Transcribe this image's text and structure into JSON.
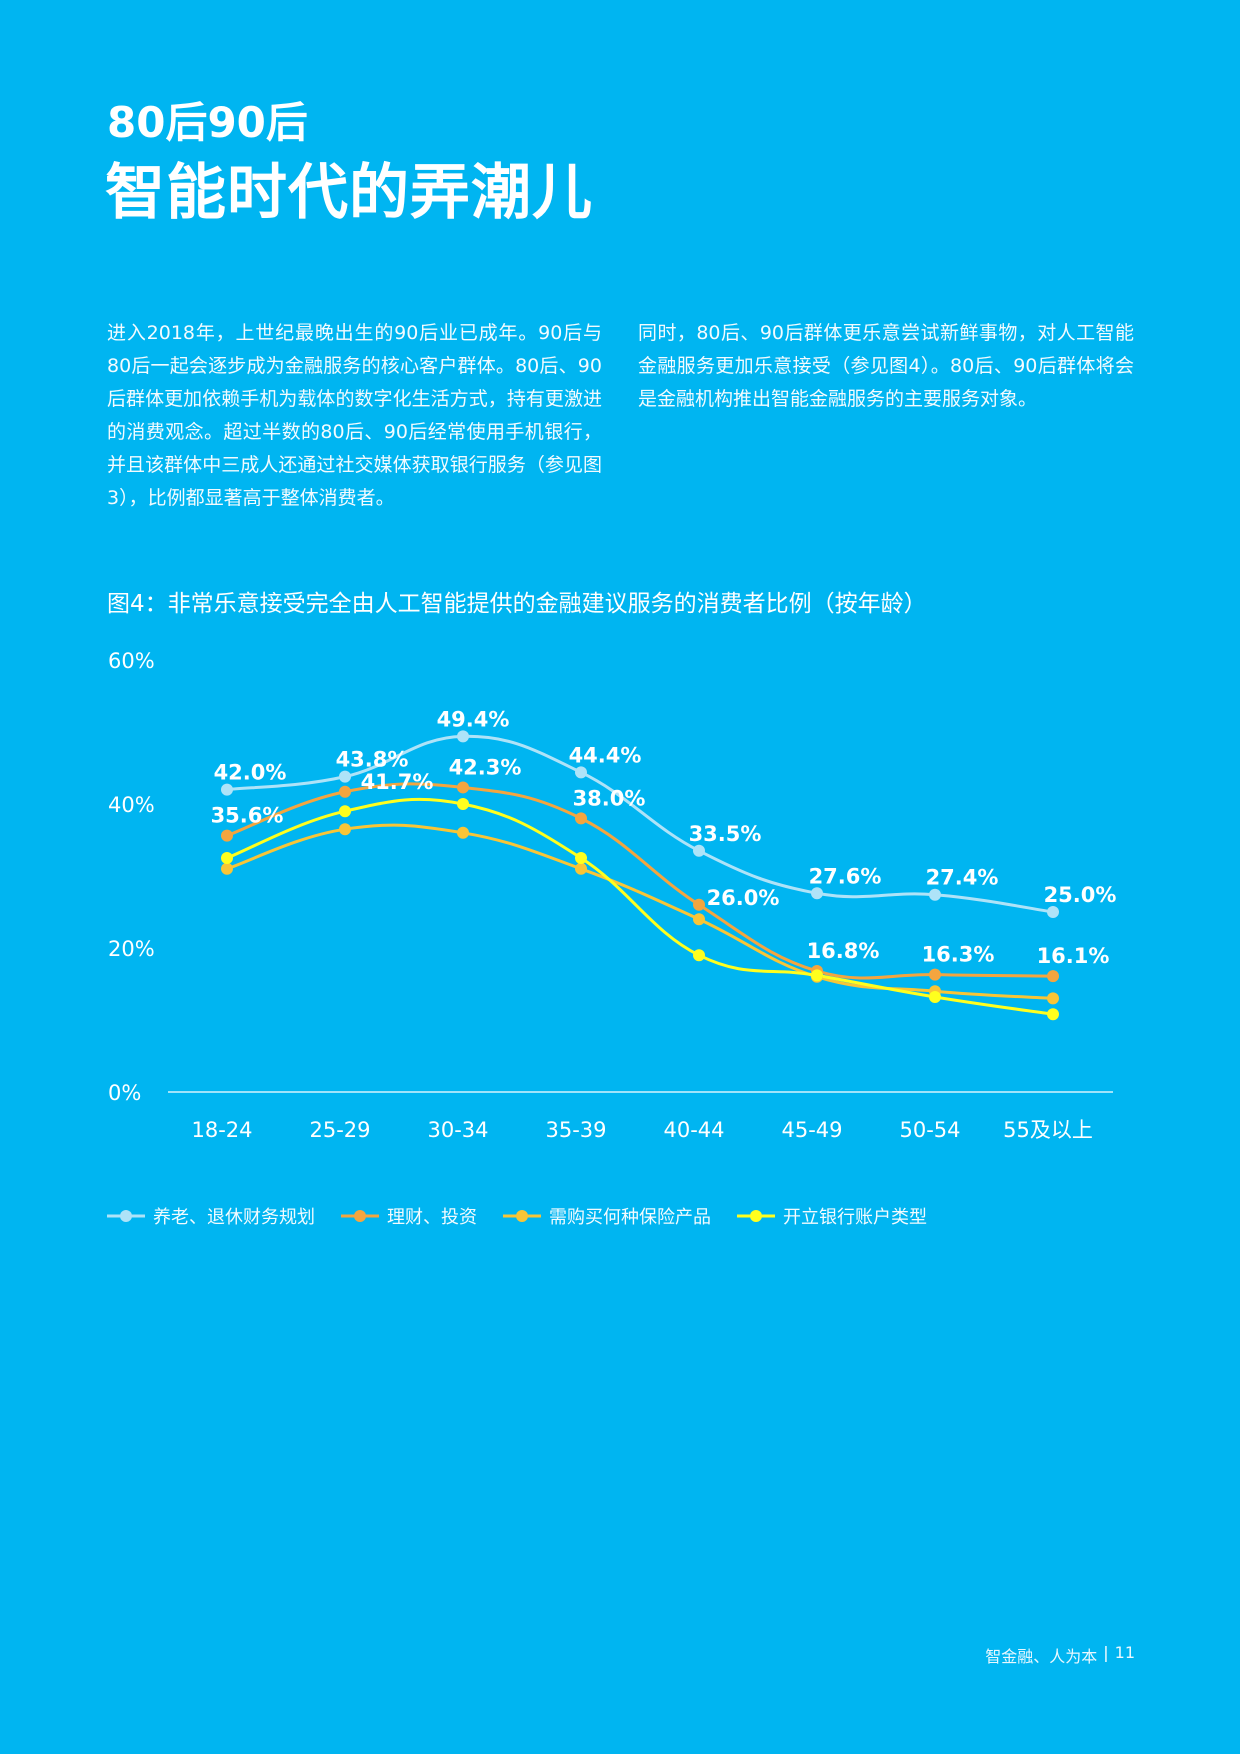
{
  "header": {
    "kicker": "80后90后",
    "title": "智能时代的弄潮儿"
  },
  "body": {
    "left_paragraph": "进入2018年，上世纪最晚出生的90后业已成年。90后与80后一起会逐步成为金融服务的核心客户群体。80后、90后群体更加依赖手机为载体的数字化生活方式，持有更激进的消费观念。超过半数的80后、90后经常使用手机银行，并且该群体中三成人还通过社交媒体获取银行服务（参见图3），比例都显著高于整体消费者。",
    "right_paragraph": "同时，80后、90后群体更乐意尝试新鲜事物，对人工智能金融服务更加乐意接受（参见图4）。80后、90后群体将会是金融机构推出智能金融服务的主要服务对象。"
  },
  "figure": {
    "title": "图4：非常乐意接受完全由人工智能提供的金融建议服务的消费者比例（按年龄）"
  },
  "chart_data": {
    "type": "line",
    "title": "图4：非常乐意接受完全由人工智能提供的金融建议服务的消费者比例（按年龄）",
    "categories": [
      "18-24",
      "25-29",
      "30-34",
      "35-39",
      "40-44",
      "45-49",
      "50-54",
      "55及以上"
    ],
    "ylim": [
      0,
      60
    ],
    "yticks": [
      0,
      20,
      40,
      60
    ],
    "ytick_labels": [
      "0%",
      "20%",
      "40%",
      "60%"
    ],
    "grid": false,
    "legend_position": "bottom-left",
    "series": [
      {
        "name": "养老、退休财务规划",
        "color": "#aee3f8",
        "values": [
          42.0,
          43.8,
          49.4,
          44.4,
          33.5,
          27.6,
          27.4,
          25.0
        ],
        "labels": [
          "42.0%",
          "43.8%",
          "49.4%",
          "44.4%",
          "33.5%",
          "27.6%",
          "27.4%",
          "25.0%"
        ]
      },
      {
        "name": "理财、投资",
        "color": "#f4a53f",
        "values": [
          35.6,
          41.7,
          42.3,
          38.0,
          26.0,
          16.8,
          16.3,
          16.1
        ],
        "labels": [
          "35.6%",
          "41.7%",
          "42.3%",
          "38.0%",
          "26.0%",
          "16.8%",
          "16.3%",
          "16.1%"
        ]
      },
      {
        "name": "需购买何种保险产品",
        "color": "#f8c537",
        "values": [
          31.0,
          36.5,
          36.0,
          31.0,
          24.0,
          16.0,
          14.0,
          13.0
        ],
        "labels": []
      },
      {
        "name": "开立银行账户类型",
        "color": "#ffff1e",
        "values": [
          32.5,
          39.0,
          40.0,
          32.5,
          19.0,
          16.2,
          13.2,
          10.8
        ],
        "labels": []
      }
    ]
  },
  "footer": {
    "text": "智金融、人为本",
    "separator": "|",
    "page_number": "11"
  }
}
